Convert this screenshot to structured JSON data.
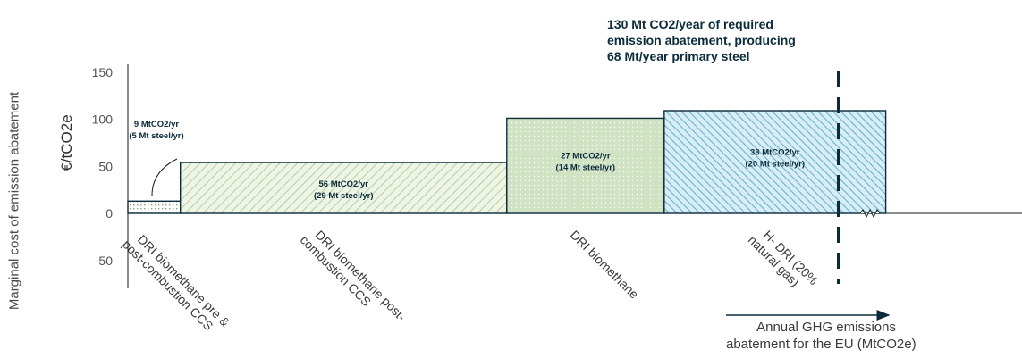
{
  "chart_data": {
    "type": "bar",
    "variant": "marginal-abatement-cost-curve",
    "y_label_outer": "Marginal cost of emission abatement",
    "y_label_inner": "€/tCO2e",
    "ylim": [
      -75,
      165
    ],
    "yticks": [
      "150",
      "100",
      "50",
      "0",
      "-50"
    ],
    "ytick_values": [
      150,
      100,
      50,
      0,
      -50
    ],
    "x_label_line1": "Annual GHG emissions",
    "x_label_line2": "abatement for the EU (MtCO2e)",
    "callout": {
      "line1": "130 Mt CO2/year of required",
      "line2": "emission abatement, producing",
      "line3": "68 Mt/year primary steel"
    },
    "target_abatement": 130,
    "break_marker": "axis-break",
    "bars": [
      {
        "category_line1": "DRI biomethane pre &",
        "category_line2": "post-combustion CCS",
        "width": 9,
        "value": 13,
        "label_line1": "9 MtCO2/yr",
        "label_line2": "(5 Mt steel/yr)",
        "color": "#ffffff",
        "hatch": "#8fa27c",
        "fill_pattern": "dots"
      },
      {
        "category_line1": "DRI biomethane post-",
        "category_line2": "combustion CCS",
        "width": 56,
        "value": 54,
        "label_line1": "56 MtCO2/yr",
        "label_line2": "(29 Mt steel/yr)",
        "color": "#eef4e6",
        "hatch": "#b7d09b",
        "fill_pattern": "diagonal"
      },
      {
        "category_line1": "DRI biomethane",
        "category_line2": "",
        "width": 27,
        "value": 101,
        "label_line1": "27 MtCO2/yr",
        "label_line2": "(14 Mt steel/yr)",
        "color": "#cfe3c3",
        "hatch": "#ffffff",
        "fill_pattern": "dots"
      },
      {
        "category_line1": "H- DRI (20%",
        "category_line2": "natural gas)",
        "width": 38,
        "value": 109,
        "label_line1": "38 MtCO2/yr",
        "label_line2": "(20 Mt steel/yr)",
        "color": "#d8edf5",
        "hatch": "#5fb0d0",
        "fill_pattern": "diagonal"
      }
    ]
  }
}
